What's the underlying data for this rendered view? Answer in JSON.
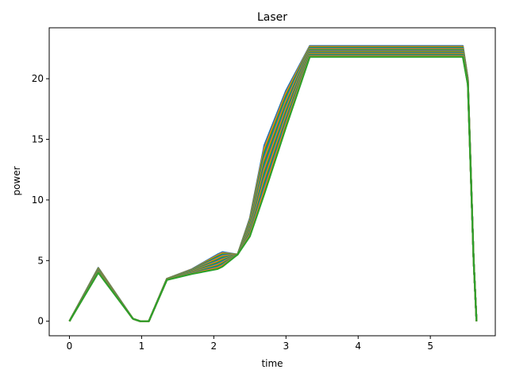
{
  "chart_data": {
    "type": "line",
    "title": "Laser",
    "xlabel": "time",
    "ylabel": "power",
    "xlim": [
      -0.28,
      5.9
    ],
    "ylim": [
      -1.2,
      24.2
    ],
    "xticks": [
      0,
      1,
      2,
      3,
      4,
      5
    ],
    "yticks": [
      0,
      5,
      10,
      15,
      20
    ],
    "grid": false,
    "legend": "none",
    "colors": [
      "#1f77b4",
      "#ff7f0e",
      "#2ca02c"
    ],
    "line_count": 15,
    "upper_envelope": [
      [
        0,
        0
      ],
      [
        0.4,
        4.4
      ],
      [
        0.88,
        0.2
      ],
      [
        0.98,
        0
      ],
      [
        1.1,
        0
      ],
      [
        1.35,
        3.5
      ],
      [
        1.7,
        4.3
      ],
      [
        2.05,
        5.5
      ],
      [
        2.12,
        5.7
      ],
      [
        2.33,
        5.5
      ],
      [
        2.5,
        8.5
      ],
      [
        2.7,
        14.5
      ],
      [
        3.0,
        19.0
      ],
      [
        3.33,
        22.7
      ],
      [
        3.7,
        22.7
      ],
      [
        4.2,
        22.7
      ],
      [
        4.7,
        22.7
      ],
      [
        5.0,
        22.7
      ],
      [
        5.45,
        22.7
      ],
      [
        5.52,
        20.0
      ],
      [
        5.6,
        5.0
      ],
      [
        5.64,
        0
      ]
    ],
    "lower_envelope": [
      [
        0,
        0
      ],
      [
        0.4,
        4.0
      ],
      [
        0.88,
        0.2
      ],
      [
        0.98,
        0
      ],
      [
        1.1,
        0
      ],
      [
        1.35,
        3.4
      ],
      [
        1.7,
        3.9
      ],
      [
        2.05,
        4.3
      ],
      [
        2.12,
        4.5
      ],
      [
        2.33,
        5.5
      ],
      [
        2.5,
        7.0
      ],
      [
        2.7,
        10.5
      ],
      [
        3.0,
        16.0
      ],
      [
        3.33,
        21.8
      ],
      [
        3.7,
        21.8
      ],
      [
        4.2,
        21.8
      ],
      [
        4.7,
        21.8
      ],
      [
        5.0,
        21.8
      ],
      [
        5.45,
        21.8
      ],
      [
        5.52,
        19.5
      ],
      [
        5.6,
        5.0
      ],
      [
        5.64,
        0
      ]
    ]
  }
}
